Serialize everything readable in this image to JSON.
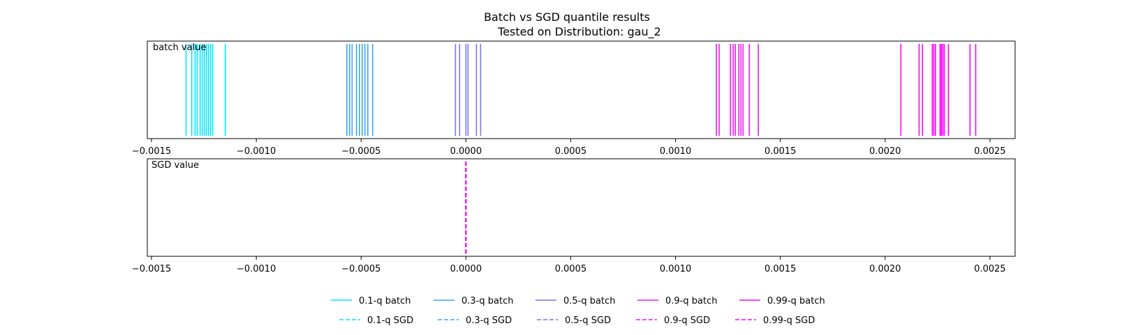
{
  "chart_data": {
    "type": "rug",
    "title": "Batch vs SGD quantile results",
    "subtitle": "Tested on Distribution: gau_2",
    "xlim": [
      -0.00152,
      0.00262
    ],
    "xticks": [
      -0.0015,
      -0.001,
      -0.0005,
      0.0,
      0.0005,
      0.001,
      0.0015,
      0.002,
      0.0025
    ],
    "xtick_labels": [
      "−0.0015",
      "−0.0010",
      "−0.0005",
      "0.0000",
      "0.0005",
      "0.0010",
      "0.0015",
      "0.0020",
      "0.0025"
    ],
    "grid": false,
    "legend_position": "bottom-center",
    "panels": [
      {
        "label": "batch value",
        "series": [
          {
            "name": "0.1-q batch",
            "color": "#00e6ff",
            "linestyle": "solid",
            "x": [
              -0.001335,
              -0.001308,
              -0.001292,
              -0.001282,
              -0.001268,
              -0.001258,
              -0.001248,
              -0.001238,
              -0.001228,
              -0.001218,
              -0.001208,
              -0.001148
            ]
          },
          {
            "name": "0.3-q batch",
            "color": "#3ba3f5",
            "linestyle": "solid",
            "x": [
              -0.000568,
              -0.000555,
              -0.000543,
              -0.000522,
              -0.000508,
              -0.000495,
              -0.000482,
              -0.000468,
              -0.000445
            ]
          },
          {
            "name": "0.5-q batch",
            "color": "#7b74f0",
            "linestyle": "solid",
            "x": [
              -5e-05,
              -3e-05,
              0.0,
              1e-05,
              5e-05,
              7e-05
            ]
          },
          {
            "name": "0.9-q batch",
            "color": "#f016f5",
            "linestyle": "solid",
            "x": [
              0.001195,
              0.001208,
              0.001262,
              0.001275,
              0.001285,
              0.001302,
              0.001312,
              0.001322,
              0.001352,
              0.001395
            ]
          },
          {
            "name": "0.99-q batch",
            "color": "#ff00ff",
            "linestyle": "solid",
            "x": [
              0.002075,
              0.002162,
              0.002178,
              0.002225,
              0.002232,
              0.00224,
              0.002262,
              0.002268,
              0.002275,
              0.002282,
              0.002302,
              0.002405,
              0.002432
            ]
          }
        ]
      },
      {
        "label": "SGD value",
        "series": [
          {
            "name": "0.1-q SGD",
            "color": "#00e6ff",
            "linestyle": "dashed",
            "x": [
              0.0
            ]
          },
          {
            "name": "0.3-q SGD",
            "color": "#3ba3f5",
            "linestyle": "dashed",
            "x": [
              0.0
            ]
          },
          {
            "name": "0.5-q SGD",
            "color": "#7b74f0",
            "linestyle": "dashed",
            "x": [
              0.0
            ]
          },
          {
            "name": "0.9-q SGD",
            "color": "#f016f5",
            "linestyle": "dashed",
            "x": [
              0.0
            ]
          },
          {
            "name": "0.99-q SGD",
            "color": "#ff00ff",
            "linestyle": "dashed",
            "x": [
              0.0
            ]
          }
        ]
      }
    ]
  }
}
